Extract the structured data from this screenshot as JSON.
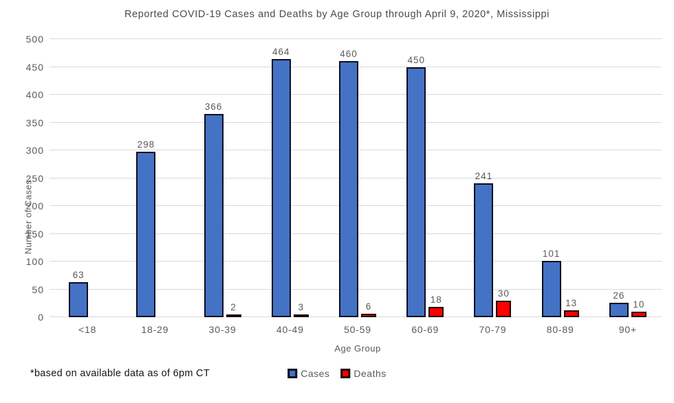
{
  "chart_data": {
    "type": "bar",
    "title": "Reported COVID-19 Cases and Deaths by Age Group through April 9, 2020*, Mississippi",
    "xlabel": "Age Group",
    "ylabel": "Number of Cases",
    "ylim": [
      0,
      500
    ],
    "ytick_step": 50,
    "grid": true,
    "legend_position": "bottom-center",
    "categories": [
      "<18",
      "18-29",
      "30-39",
      "40-49",
      "50-59",
      "60-69",
      "70-79",
      "80-89",
      "90+"
    ],
    "series": [
      {
        "name": "Cases",
        "fill_color": "#4472C4",
        "border_color": "#0D0D20",
        "values": [
          63,
          298,
          366,
          464,
          460,
          450,
          241,
          101,
          26
        ]
      },
      {
        "name": "Deaths",
        "fill_color": "#FF0000",
        "border_color": "#1A0808",
        "values": [
          null,
          null,
          2,
          3,
          6,
          18,
          30,
          13,
          10
        ]
      }
    ],
    "data_labels_shown": true
  },
  "footnote": "*based on available data as of 6pm CT",
  "colors": {
    "background": "#FFFFFF",
    "gridline": "#D9D9D9",
    "axis_text": "#595959",
    "title_text": "#4A4A4A",
    "footnote_text": "#141414"
  }
}
